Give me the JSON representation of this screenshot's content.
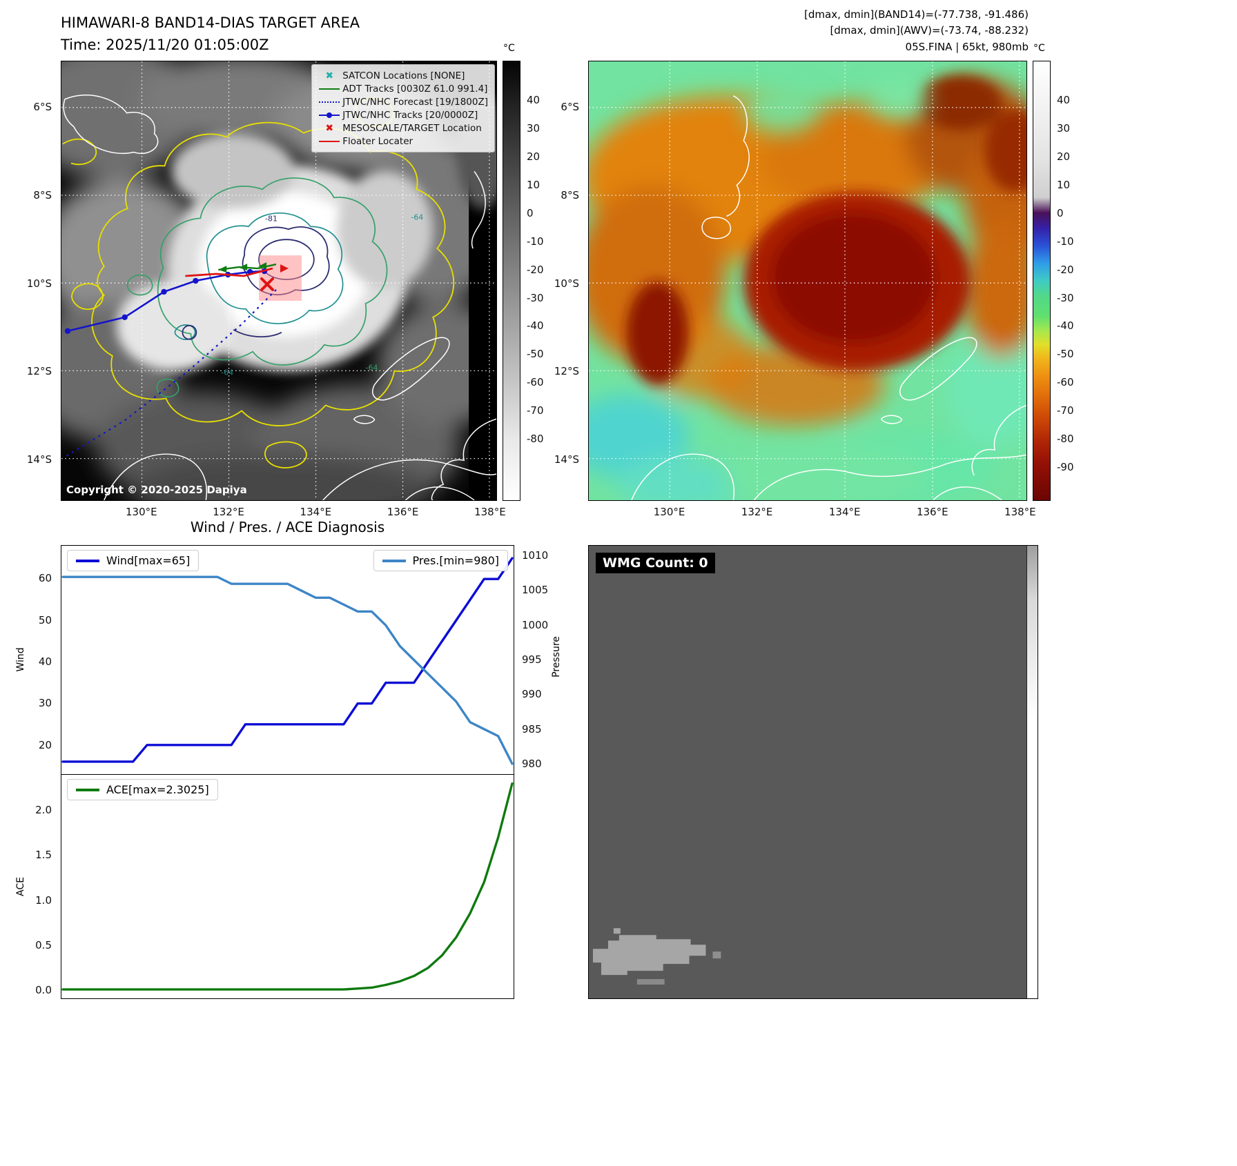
{
  "colors": {
    "wind_line": "#0c0cd6",
    "pressure_line": "#3d85c6",
    "ace_line": "#0e7a0e",
    "track_red": "#e01212",
    "track_green": "#0f7d12",
    "track_blue": "#1414cc",
    "satcon_cyan": "#20b2aa",
    "target_area_pink": "#ff8888"
  },
  "panel_band14": {
    "title_line1": "HIMAWARI-8 BAND14-DIAS TARGET AREA",
    "title_line2": "Time: 2025/11/20 01:05:00Z",
    "legend": [
      {
        "icon": "x-cyan",
        "label": "SATCON Locations [NONE]"
      },
      {
        "icon": "line-green",
        "label": "ADT Tracks [0030Z 61.0 991.4]"
      },
      {
        "icon": "dotted-blue",
        "label": "JTWC/NHC Forecast [19/1800Z]"
      },
      {
        "icon": "line-dot-blue",
        "label": "JTWC/NHC Tracks [20/0000Z]"
      },
      {
        "icon": "x-red",
        "label": "MESOSCALE/TARGET Location"
      },
      {
        "icon": "line-red",
        "label": "Floater Locater"
      }
    ],
    "contour_labels": [
      "-81",
      "-64",
      "-64",
      "-64"
    ],
    "copyright": "Copyright © 2020-2025 Dapiya",
    "x_ticks": [
      {
        "label": "130°E",
        "value": 130
      },
      {
        "label": "132°E",
        "value": 132
      },
      {
        "label": "134°E",
        "value": 134
      },
      {
        "label": "136°E",
        "value": 136
      },
      {
        "label": "138°E",
        "value": 138
      }
    ],
    "y_ticks": [
      {
        "label": "6°S",
        "value": 6
      },
      {
        "label": "8°S",
        "value": 8
      },
      {
        "label": "10°S",
        "value": 10
      },
      {
        "label": "12°S",
        "value": 12
      },
      {
        "label": "14°S",
        "value": 14
      }
    ],
    "lon_range": [
      128.15,
      138.16
    ],
    "lat_range": [
      4.95,
      14.94
    ],
    "colorbar": {
      "unit": "°C",
      "ticks": [
        40,
        30,
        20,
        10,
        0,
        -10,
        -20,
        -30,
        -40,
        -50,
        -60,
        -70,
        -80
      ],
      "range": [
        54,
        -102
      ]
    }
  },
  "panel_awv": {
    "info_lines": [
      "[dmax, dmin](BAND14)=(-77.738, -91.486)",
      "[dmax, dmin](AWV)=(-73.74, -88.232)",
      "05S.FINA | 65kt, 980mb"
    ],
    "x_ticks": [
      {
        "label": "130°E",
        "value": 130
      },
      {
        "label": "132°E",
        "value": 132
      },
      {
        "label": "134°E",
        "value": 134
      },
      {
        "label": "136°E",
        "value": 136
      },
      {
        "label": "138°E",
        "value": 138
      }
    ],
    "y_ticks": [
      {
        "label": "6°S",
        "value": 6
      },
      {
        "label": "8°S",
        "value": 8
      },
      {
        "label": "10°S",
        "value": 10
      },
      {
        "label": "12°S",
        "value": 12
      },
      {
        "label": "14°S",
        "value": 14
      }
    ],
    "lon_range": [
      128.15,
      138.16
    ],
    "lat_range": [
      4.95,
      14.94
    ],
    "colorbar": {
      "unit": "°C",
      "ticks": [
        40,
        30,
        20,
        10,
        0,
        -10,
        -20,
        -30,
        -40,
        -50,
        -60,
        -70,
        -80,
        -90
      ],
      "range": [
        54,
        -102
      ]
    }
  },
  "wmg": {
    "label": "WMG Count: 0"
  },
  "chart_data": [
    {
      "type": "line",
      "title": "Wind / Pres. / ACE Diagnosis",
      "subplot": "wind_pressure",
      "series": [
        {
          "name": "Wind[max=65]",
          "axis": "left",
          "color": "#0c0cd6",
          "values": [
            16,
            16,
            16,
            16,
            16,
            16,
            20,
            20,
            20,
            20,
            20,
            20,
            20,
            25,
            25,
            25,
            25,
            25,
            25,
            25,
            25,
            30,
            30,
            35,
            35,
            35,
            40,
            45,
            50,
            55,
            60,
            60,
            65
          ]
        },
        {
          "name": "Pres.[min=980]",
          "axis": "right",
          "color": "#3d85c6",
          "values": [
            1007,
            1007,
            1007,
            1007,
            1007,
            1007,
            1007,
            1007,
            1007,
            1007,
            1007,
            1007,
            1006,
            1006,
            1006,
            1006,
            1006,
            1005,
            1004,
            1004,
            1003,
            1002,
            1002,
            1000,
            997,
            995,
            993,
            991,
            989,
            986,
            985,
            984,
            980
          ]
        }
      ],
      "yleft": {
        "label": "Wind",
        "ticks": [
          20,
          30,
          40,
          50,
          60
        ],
        "range": [
          13,
          68
        ]
      },
      "yright": {
        "label": "Pressure",
        "ticks": [
          980,
          985,
          990,
          995,
          1000,
          1005,
          1010
        ],
        "range": [
          978.5,
          1011.5
        ]
      },
      "legend_position": "top",
      "grid": false
    },
    {
      "type": "line",
      "subplot": "ace",
      "series": [
        {
          "name": "ACE[max=2.3025]",
          "axis": "left",
          "color": "#0e7a0e",
          "values": [
            0,
            0,
            0,
            0,
            0,
            0,
            0,
            0,
            0,
            0,
            0,
            0,
            0,
            0,
            0,
            0,
            0,
            0,
            0,
            0,
            0,
            0.01,
            0.02,
            0.05,
            0.09,
            0.15,
            0.24,
            0.38,
            0.58,
            0.85,
            1.2,
            1.7,
            2.3025
          ]
        }
      ],
      "yleft": {
        "label": "ACE",
        "ticks": [
          0,
          0.5,
          1,
          1.5,
          2
        ],
        "range": [
          -0.1,
          2.4
        ],
        "decimals": 1
      },
      "legend_position": "top-left",
      "grid": false
    }
  ]
}
